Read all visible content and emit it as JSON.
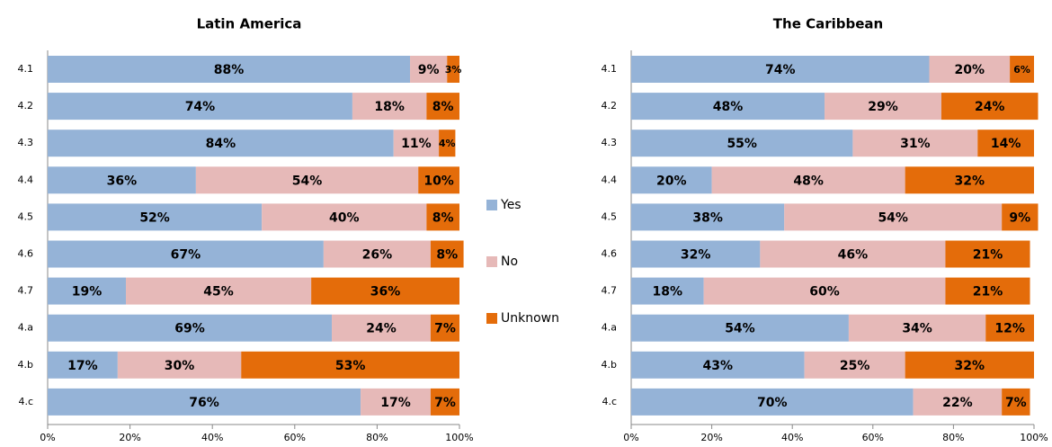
{
  "chart_data": [
    {
      "type": "stacked-barh",
      "title": "Latin America",
      "categories": [
        "4.1",
        "4.2",
        "4.3",
        "4.4",
        "4.5",
        "4.6",
        "4.7",
        "4.a",
        "4.b",
        "4.c"
      ],
      "series": [
        {
          "name": "Yes",
          "color": "#95b3d7",
          "values": [
            88,
            74,
            84,
            36,
            52,
            67,
            19,
            69,
            17,
            76
          ],
          "value_labels": [
            "88%",
            "74%",
            "84%",
            "36%",
            "52%",
            "67%",
            "19%",
            "69%",
            "17%",
            "76%"
          ]
        },
        {
          "name": "No",
          "color": "#e6b9b8",
          "values": [
            9,
            18,
            11,
            54,
            40,
            26,
            45,
            24,
            30,
            17
          ],
          "value_labels": [
            "9%",
            "18%",
            "11%",
            "54%",
            "40%",
            "26%",
            "45%",
            "24%",
            "30%",
            "17%"
          ]
        },
        {
          "name": "Unknown",
          "color": "#e46c0a",
          "values": [
            3,
            8,
            4,
            10,
            8,
            8,
            36,
            7,
            53,
            7
          ],
          "value_labels": [
            "3%",
            "8%",
            "4%",
            "10%",
            "8%",
            "8%",
            "36%",
            "7%",
            "53%",
            "7%"
          ]
        }
      ],
      "xlim": [
        0,
        100
      ],
      "xticks": [
        {
          "value": 0,
          "label": "0%"
        },
        {
          "value": 20,
          "label": "20%"
        },
        {
          "value": 40,
          "label": "40%"
        },
        {
          "value": 60,
          "label": "60%"
        },
        {
          "value": 80,
          "label": "80%"
        },
        {
          "value": 100,
          "label": "100%"
        }
      ]
    },
    {
      "type": "stacked-barh",
      "title": "The Caribbean",
      "categories": [
        "4.1",
        "4.2",
        "4.3",
        "4.4",
        "4.5",
        "4.6",
        "4.7",
        "4.a",
        "4.b",
        "4.c"
      ],
      "series": [
        {
          "name": "Yes",
          "color": "#95b3d7",
          "values": [
            74,
            48,
            55,
            20,
            38,
            32,
            18,
            54,
            43,
            70
          ],
          "value_labels": [
            "74%",
            "48%",
            "55%",
            "20%",
            "38%",
            "32%",
            "18%",
            "54%",
            "43%",
            "70%"
          ]
        },
        {
          "name": "No",
          "color": "#e6b9b8",
          "values": [
            20,
            29,
            31,
            48,
            54,
            46,
            60,
            34,
            25,
            22
          ],
          "value_labels": [
            "20%",
            "29%",
            "31%",
            "48%",
            "54%",
            "46%",
            "60%",
            "34%",
            "25%",
            "22%"
          ]
        },
        {
          "name": "Unknown",
          "color": "#e46c0a",
          "values": [
            6,
            24,
            14,
            32,
            9,
            21,
            21,
            12,
            32,
            7
          ],
          "value_labels": [
            "6%",
            "24%",
            "14%",
            "32%",
            "9%",
            "21%",
            "21%",
            "12%",
            "32%",
            "7%"
          ]
        }
      ],
      "xlim": [
        0,
        100
      ],
      "xticks": [
        {
          "value": 0,
          "label": "0%"
        },
        {
          "value": 20,
          "label": "20%"
        },
        {
          "value": 40,
          "label": "40%"
        },
        {
          "value": 60,
          "label": "60%"
        },
        {
          "value": 80,
          "label": "80%"
        },
        {
          "value": 100,
          "label": "100%"
        }
      ]
    }
  ]
}
